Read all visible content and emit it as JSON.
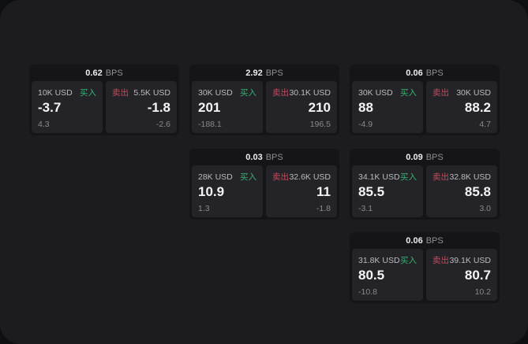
{
  "labels": {
    "buy": "买入",
    "sell": "卖出",
    "bps_unit": "BPS"
  },
  "colors": {
    "buy_green": "#36b26f",
    "sell_red": "#c6495e",
    "screen_bg": "#1c1c1e",
    "card_bg": "#151517",
    "panel_bg": "#242428"
  },
  "cards": [
    {
      "bps": "0.62",
      "buy": {
        "size": "10K USD",
        "price": "-3.7",
        "sub": "4.3"
      },
      "sell": {
        "size": "5.5K USD",
        "price": "-1.8",
        "sub": "-2.6"
      }
    },
    {
      "bps": "2.92",
      "buy": {
        "size": "30K USD",
        "price": "201",
        "sub": "-188.1"
      },
      "sell": {
        "size": "30.1K USD",
        "price": "210",
        "sub": "196.5"
      }
    },
    {
      "bps": "0.06",
      "buy": {
        "size": "30K USD",
        "price": "88",
        "sub": "-4.9"
      },
      "sell": {
        "size": "30K USD",
        "price": "88.2",
        "sub": "4.7"
      }
    },
    {
      "bps": "0.03",
      "buy": {
        "size": "28K USD",
        "price": "10.9",
        "sub": "1.3"
      },
      "sell": {
        "size": "32.6K USD",
        "price": "11",
        "sub": "-1.8"
      }
    },
    {
      "bps": "0.09",
      "buy": {
        "size": "34.1K USD",
        "price": "85.5",
        "sub": "-3.1"
      },
      "sell": {
        "size": "32.8K USD",
        "price": "85.8",
        "sub": "3.0"
      }
    },
    {
      "bps": "0.06",
      "buy": {
        "size": "31.8K USD",
        "price": "80.5",
        "sub": "-10.8"
      },
      "sell": {
        "size": "39.1K USD",
        "price": "80.7",
        "sub": "10.2"
      }
    }
  ]
}
